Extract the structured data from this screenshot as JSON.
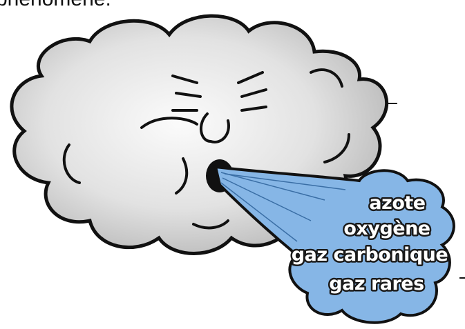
{
  "header_fragment": "phénomène.",
  "labels": [
    "azote",
    "oxygène",
    "gaz carbonique",
    "gaz rares"
  ]
}
